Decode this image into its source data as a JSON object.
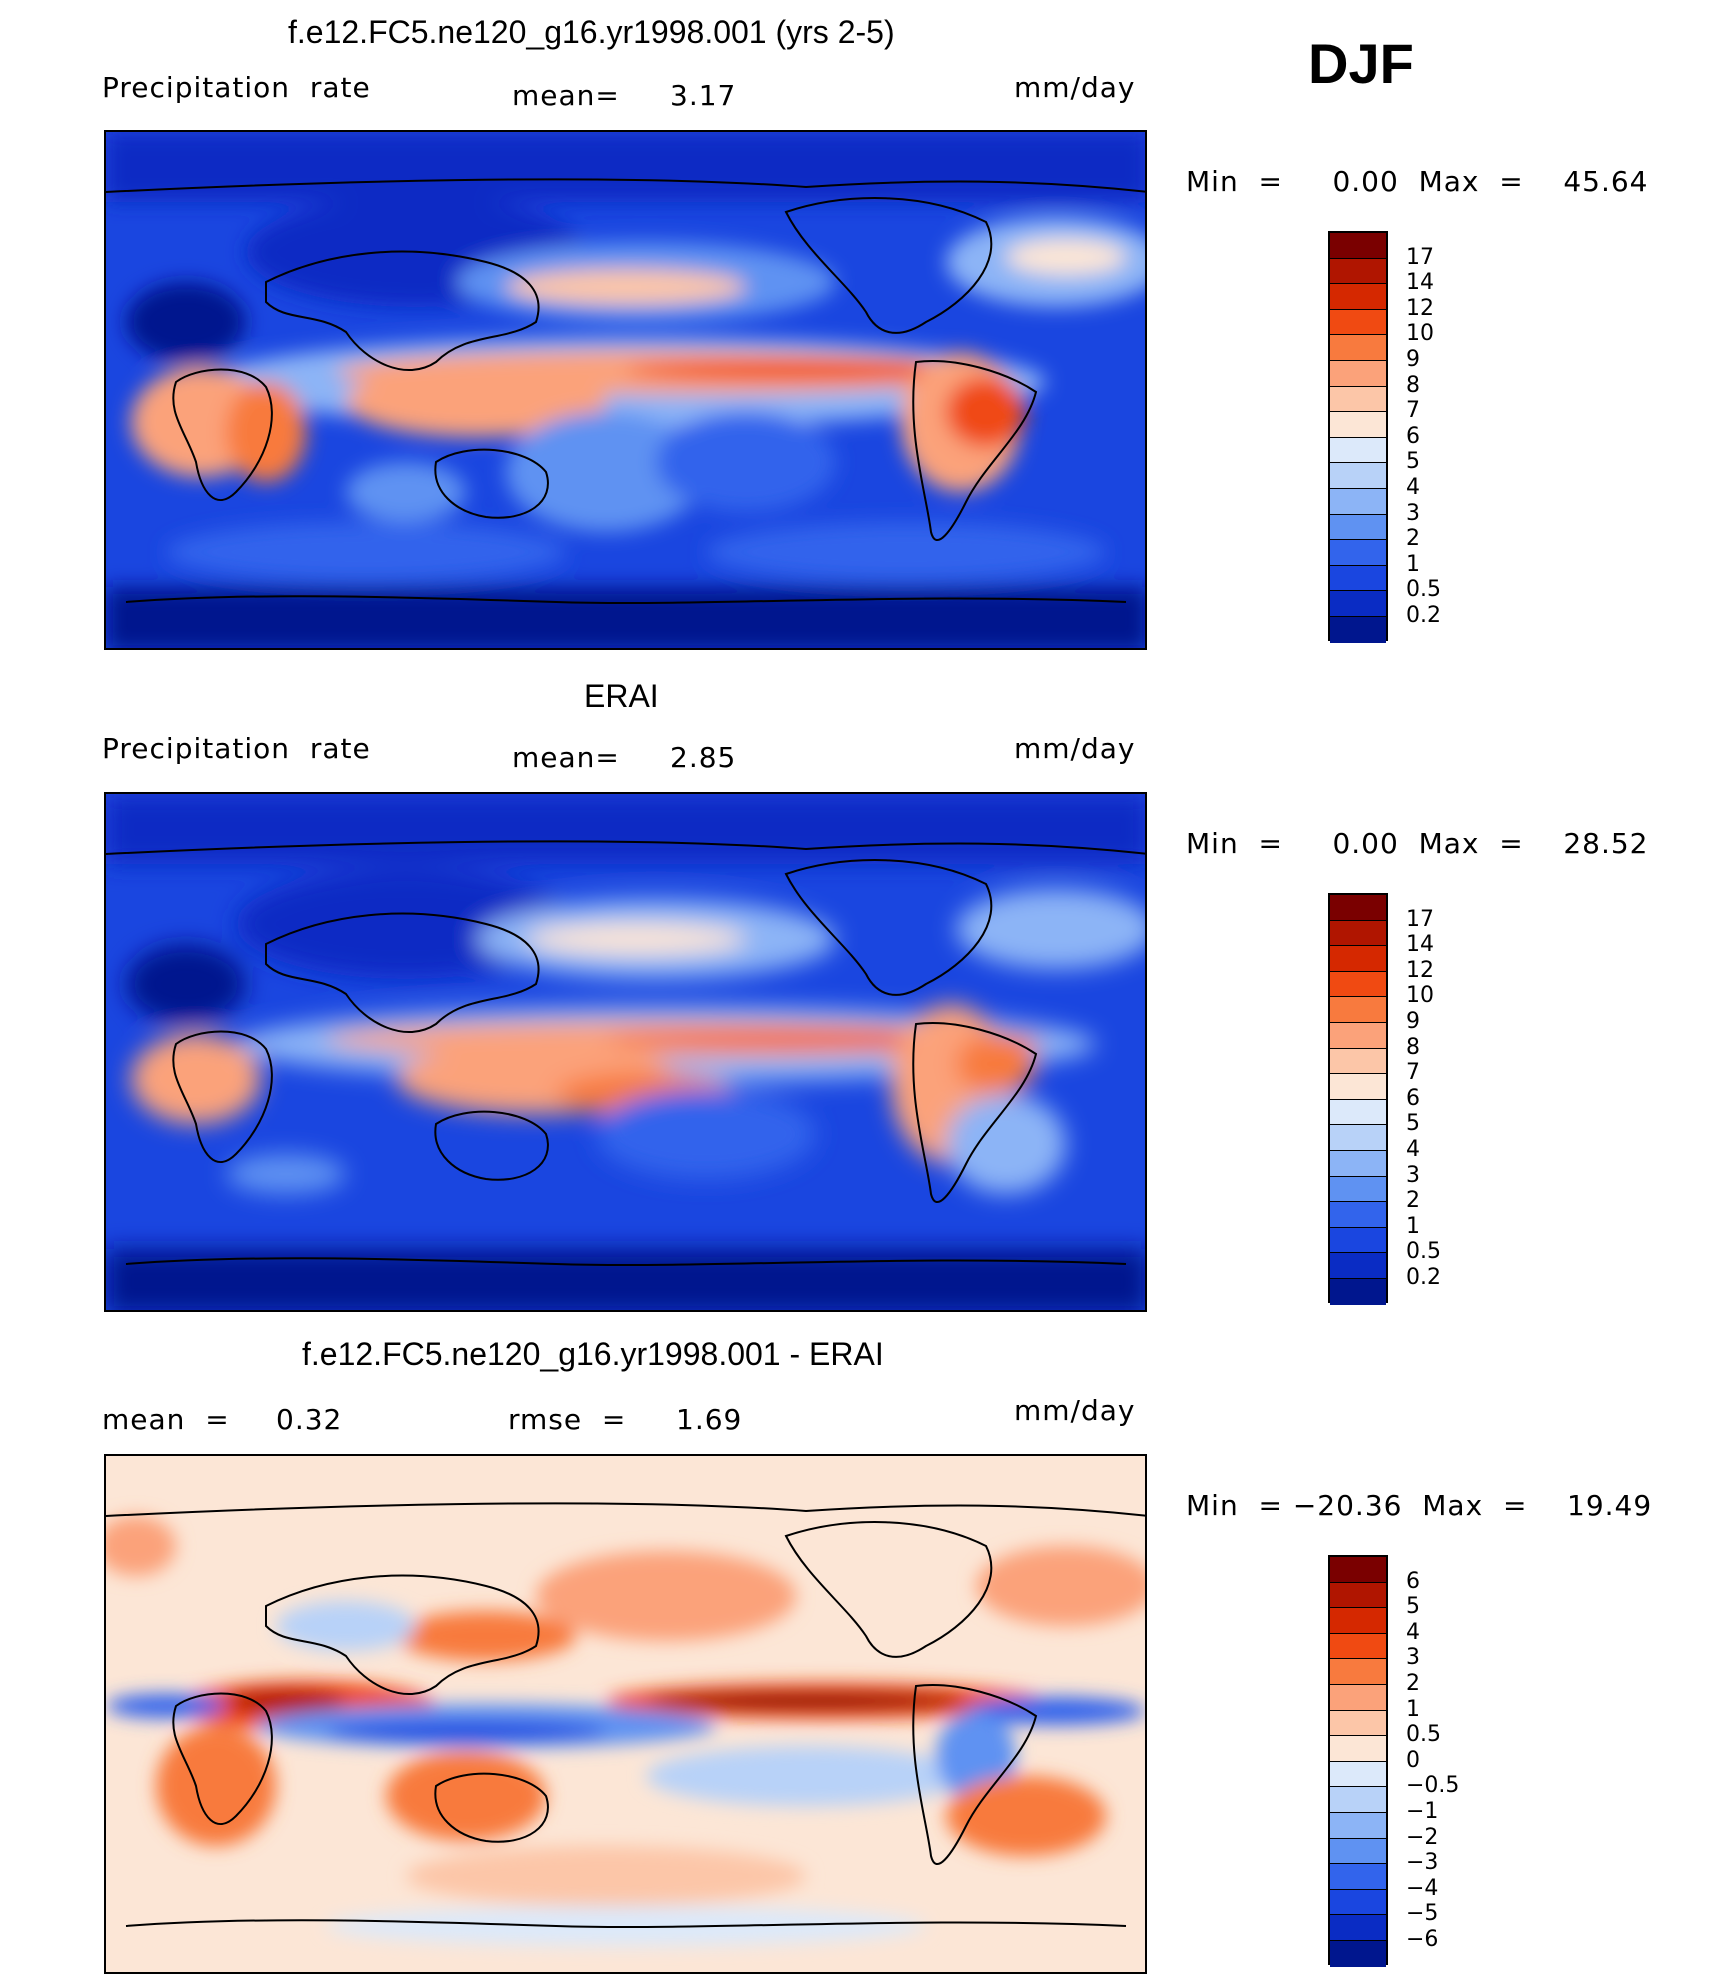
{
  "season": "DJF",
  "panels": [
    {
      "title": "f.e12.FC5.ne120_g16.yr1998.001 (yrs 2-5)",
      "left_label": "Precipitation  rate",
      "mid_label": "mean=",
      "mid_value": "3.17",
      "units": "mm/day",
      "minmax": "Min  =     0.00  Max  =    45.64"
    },
    {
      "title": "ERAI",
      "left_label": "Precipitation  rate",
      "mid_label": "mean=",
      "mid_value": "2.85",
      "units": "mm/day",
      "minmax": "Min  =     0.00  Max  =    28.52"
    },
    {
      "title": "f.e12.FC5.ne120_g16.yr1998.001 - ERAI",
      "left_label": "mean  =",
      "left_value": "0.32",
      "mid_label": "rmse  =",
      "mid_value": "1.69",
      "units": "mm/day",
      "minmax": "Min  = −20.36  Max  =    19.49"
    }
  ],
  "colorbars": {
    "precip": {
      "labels": [
        "17",
        "14",
        "12",
        "10",
        "9",
        "8",
        "7",
        "6",
        "5",
        "4",
        "3",
        "2",
        "1",
        "0.5",
        "0.2"
      ],
      "colors": [
        "#7a0000",
        "#b01500",
        "#d52800",
        "#f04a12",
        "#f87a3e",
        "#fba27a",
        "#fcc6a8",
        "#fce6d6",
        "#dce9fa",
        "#b8d2f8",
        "#8cb4f6",
        "#5f92f2",
        "#3264ec",
        "#1a46e0",
        "#0a2cc4",
        "#00168e"
      ]
    },
    "diff": {
      "labels": [
        "6",
        "5",
        "4",
        "3",
        "2",
        "1",
        "0.5",
        "0",
        "−0.5",
        "−1",
        "−2",
        "−3",
        "−4",
        "−5",
        "−6"
      ],
      "colors": [
        "#7a0000",
        "#b01500",
        "#d52800",
        "#f04a12",
        "#f87a3e",
        "#fba27a",
        "#fcc6a8",
        "#fce6d6",
        "#dce9fa",
        "#b8d2f8",
        "#8cb4f6",
        "#5f92f2",
        "#3264ec",
        "#1a46e0",
        "#0a2cc4",
        "#00168e"
      ]
    }
  }
}
